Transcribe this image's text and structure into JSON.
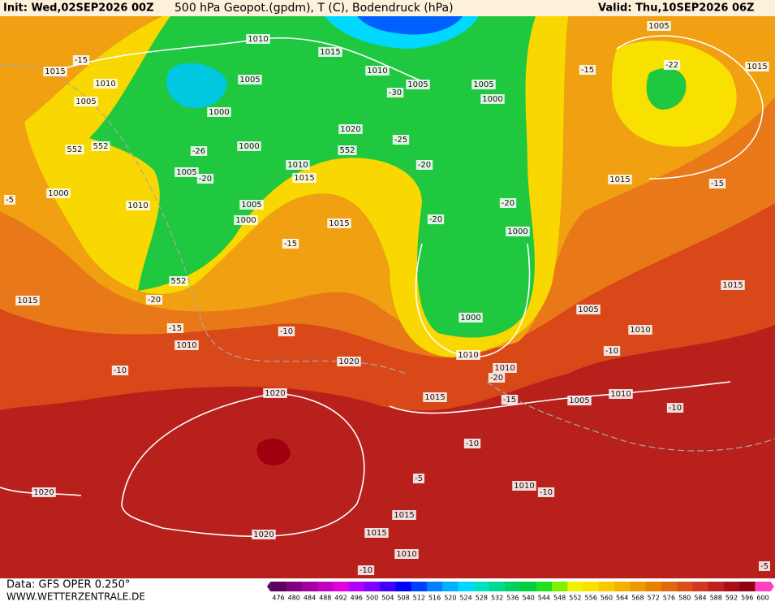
{
  "header": {
    "init": "Init: Wed,02SEP2026 00Z",
    "title": "500 hPa Geopot.(gpdm), T (C), Bodendruck (hPa)",
    "valid": "Valid: Thu,10SEP2026 06Z"
  },
  "footer": {
    "source": "Data: GFS OPER 0.250°",
    "website": "WWW.WETTERZENTRALE.DE"
  },
  "scale": {
    "labels": [
      476,
      480,
      484,
      488,
      492,
      496,
      500,
      504,
      508,
      512,
      516,
      520,
      524,
      528,
      532,
      536,
      540,
      544,
      548,
      552,
      556,
      560,
      564,
      568,
      572,
      576,
      580,
      584,
      588,
      592,
      596,
      600
    ],
    "colors": [
      "#5a0060",
      "#800080",
      "#a000a0",
      "#c000c0",
      "#e000e0",
      "#b000ff",
      "#8000ff",
      "#4000ff",
      "#0000ff",
      "#0040ff",
      "#0080ff",
      "#00b0ff",
      "#00d8ff",
      "#00e0c0",
      "#00d890",
      "#00d060",
      "#00d040",
      "#20e020",
      "#80f000",
      "#f0f000",
      "#f8e000",
      "#f8c800",
      "#f8b000",
      "#f09800",
      "#e88000",
      "#e06810",
      "#d85018",
      "#d03820",
      "#c02020",
      "#a81018",
      "#900010",
      "#ff40c0"
    ]
  },
  "map_labels": [
    "1010",
    "1015",
    "1010",
    "1005",
    "1005",
    "1000",
    "1005",
    "1015",
    "-15",
    "1015",
    "1010",
    "1005",
    "1005",
    "1000",
    "-26",
    "1000",
    "-20",
    "1005",
    "552",
    "552",
    "-30",
    "1020",
    "-25",
    "552",
    "1010",
    "1015",
    "-20",
    "-22",
    "-15",
    "1015",
    "-15",
    "-5",
    "1000",
    "1010",
    "1005",
    "1000",
    "1015",
    "-20",
    "-20",
    "1000",
    "-15",
    "552",
    "1015",
    "-20",
    "1005",
    "1015",
    "1000",
    "1010",
    "-15",
    "-10",
    "1010",
    "-10",
    "1010",
    "1010",
    "-20",
    "1020",
    "-10",
    "1020",
    "1015",
    "-15",
    "1005",
    "1010",
    "-10",
    "-10",
    "-5",
    "1020",
    "1010",
    "-10",
    "1015",
    "1015",
    "1020",
    "1010",
    "-10",
    "-5"
  ]
}
